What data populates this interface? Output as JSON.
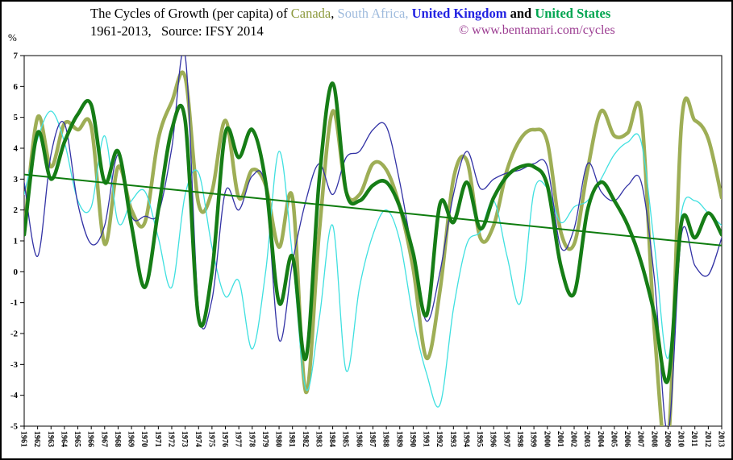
{
  "title": {
    "tokens": [
      {
        "text": "The Cycles of Growth (per capita) of ",
        "color": "#000000",
        "bold": false
      },
      {
        "text": "Canada",
        "color": "#8D9A3E",
        "bold": false
      },
      {
        "text": ", ",
        "color": "#000000",
        "bold": false
      },
      {
        "text": "South Africa,",
        "color": "#9FBBDD",
        "bold": false
      },
      {
        "text": " ",
        "color": "#000000",
        "bold": false
      },
      {
        "text": "United Kingdom",
        "color": "#2222E2",
        "bold": true
      },
      {
        "text": " and ",
        "color": "#000000",
        "bold": true
      },
      {
        "text": "United States",
        "color": "#00A550",
        "bold": true
      }
    ],
    "line2": "1961-2013,   Source: IFSY 2014",
    "copyright": "© www.bentamari.com/cycles",
    "copyright_color": "#9C3D92"
  },
  "chart_data": {
    "type": "line",
    "title": "The Cycles of Growth (per capita) of Canada, South Africa, United Kingdom and United States, 1961-2013",
    "source": "IFSY 2014",
    "xlabel": "",
    "ylabel": "%",
    "ylim": [
      -5,
      7
    ],
    "yticks": [
      7,
      6,
      5,
      4,
      3,
      2,
      1,
      0,
      -1,
      -2,
      -3,
      -4,
      -5
    ],
    "grid": false,
    "legend": "inline-title-colors",
    "years": [
      1961,
      1962,
      1963,
      1964,
      1965,
      1966,
      1967,
      1968,
      1969,
      1970,
      1971,
      1972,
      1973,
      1974,
      1975,
      1976,
      1977,
      1978,
      1979,
      1980,
      1981,
      1982,
      1983,
      1984,
      1985,
      1986,
      1987,
      1988,
      1989,
      1990,
      1991,
      1992,
      1993,
      1994,
      1995,
      1996,
      1997,
      1998,
      1999,
      2000,
      2001,
      2002,
      2003,
      2004,
      2005,
      2006,
      2007,
      2008,
      2009,
      2010,
      2011,
      2012,
      2013
    ],
    "series": [
      {
        "name": "Canada",
        "color": "#9EAE56",
        "width": 4.5,
        "values": [
          1.3,
          5.0,
          3.4,
          4.8,
          4.6,
          4.7,
          0.9,
          3.4,
          2.0,
          1.6,
          4.3,
          5.5,
          6.3,
          2.2,
          2.6,
          4.9,
          2.4,
          3.3,
          2.8,
          0.8,
          2.4,
          -3.9,
          1.3,
          5.2,
          2.6,
          2.5,
          3.5,
          3.3,
          2.1,
          0.1,
          -2.8,
          -0.6,
          3.0,
          3.6,
          1.1,
          1.5,
          3.3,
          4.3,
          4.6,
          4.2,
          1.3,
          0.9,
          3.3,
          5.2,
          4.4,
          4.5,
          5.1,
          -2.0,
          -5.6,
          4.8,
          4.9,
          4.3,
          2.4
        ]
      },
      {
        "name": "South Africa",
        "color": "#3FE0E0",
        "width": 1.3,
        "values": [
          2.5,
          4.3,
          5.2,
          4.2,
          2.3,
          2.1,
          4.4,
          1.6,
          2.3,
          2.6,
          1.1,
          -0.5,
          2.5,
          3.2,
          0.8,
          -0.8,
          -0.3,
          -2.5,
          0.0,
          3.9,
          0.5,
          -3.8,
          -1.5,
          1.5,
          -3.2,
          -0.5,
          1.2,
          2.0,
          1.0,
          -1.5,
          -3.3,
          -4.3,
          -1.2,
          0.9,
          1.3,
          2.3,
          0.5,
          -1.0,
          2.6,
          2.7,
          1.6,
          2.1,
          2.3,
          3.0,
          3.8,
          4.2,
          4.2,
          0.8,
          -2.8,
          1.9,
          2.3,
          1.9,
          1.5
        ]
      },
      {
        "name": "United Kingdom",
        "color": "#3232A5",
        "width": 1.3,
        "values": [
          2.9,
          0.5,
          3.8,
          4.8,
          2.2,
          0.9,
          1.5,
          3.8,
          1.8,
          1.8,
          1.9,
          4.0,
          7.0,
          -1.2,
          -0.9,
          2.6,
          2.0,
          3.1,
          2.7,
          -2.2,
          0.3,
          2.3,
          3.5,
          2.5,
          3.7,
          3.9,
          4.6,
          4.7,
          2.9,
          0.5,
          -1.6,
          0.0,
          2.5,
          3.9,
          2.7,
          3.0,
          3.2,
          3.3,
          3.5,
          3.4,
          0.8,
          1.4,
          3.5,
          2.6,
          2.3,
          2.8,
          2.9,
          -0.3,
          -5.2,
          1.2,
          0.2,
          -0.1,
          1.1
        ]
      },
      {
        "name": "United States",
        "color": "#167D16",
        "width": 4.5,
        "values": [
          1.2,
          4.5,
          3.0,
          4.2,
          5.1,
          5.4,
          2.9,
          3.9,
          1.5,
          -0.5,
          2.0,
          4.6,
          4.9,
          -1.5,
          0.0,
          4.5,
          3.7,
          4.6,
          2.9,
          -1.0,
          0.5,
          -2.8,
          3.0,
          6.1,
          2.6,
          2.3,
          2.8,
          2.9,
          2.1,
          0.6,
          -1.4,
          2.2,
          1.6,
          2.9,
          1.4,
          2.4,
          3.1,
          3.4,
          3.4,
          2.8,
          0.2,
          -0.7,
          2.0,
          2.9,
          2.3,
          1.5,
          0.3,
          -1.4,
          -3.5,
          1.6,
          1.1,
          1.9,
          1.2
        ]
      }
    ],
    "trend_line": {
      "name": "United States trend",
      "color": "#0E7C0E",
      "width": 2,
      "start_year": 1961,
      "start_value": 3.15,
      "end_year": 2013,
      "end_value": 0.85
    }
  }
}
